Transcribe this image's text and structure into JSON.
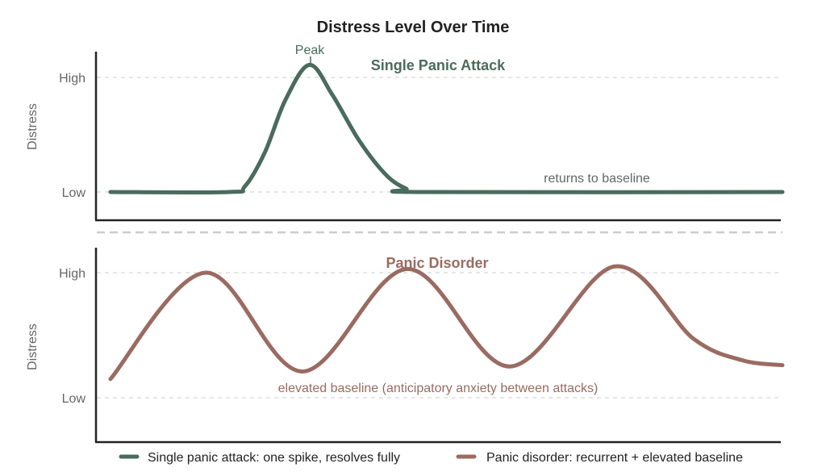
{
  "chart_data": [
    {
      "type": "line",
      "title": "Distress Level Over Time",
      "panel_title": "Single Panic Attack",
      "ylabel": "Distress",
      "xlabel": "",
      "y_ticks": [
        "Low",
        "High"
      ],
      "y_tick_values": [
        0,
        1
      ],
      "ylim": [
        -0.25,
        1.25
      ],
      "xlim": [
        0,
        100
      ],
      "grid": "horizontal dashed at ticks",
      "color": "#4a6b5d",
      "annotations": {
        "peak": "Peak",
        "baseline": "returns to baseline"
      },
      "series": [
        {
          "x": [
            0,
            17.6,
            20,
            23,
            26,
            29.6,
            33,
            37,
            41,
            44,
            46.6,
            100
          ],
          "y": [
            0,
            0,
            0.05,
            0.35,
            0.8,
            1.11,
            0.85,
            0.45,
            0.15,
            0.03,
            0,
            0
          ]
        }
      ]
    },
    {
      "type": "line",
      "panel_title": "Panic Disorder",
      "ylabel": "Distress",
      "xlabel": "",
      "y_ticks": [
        "Low",
        "High"
      ],
      "y_tick_values": [
        0,
        1
      ],
      "ylim": [
        -0.35,
        1.2
      ],
      "xlim": [
        0,
        100
      ],
      "grid": "horizontal dashed at ticks",
      "color": "#9a6b62",
      "annotations": {
        "baseline": "elevated baseline (anticipatory anxiety between attacks)"
      },
      "series": [
        {
          "x": [
            0,
            14.2,
            28.6,
            44.2,
            59.4,
            75,
            86.8,
            94,
            100
          ],
          "y": [
            0.15,
            1.0,
            0.21,
            1.03,
            0.25,
            1.05,
            0.47,
            0.3,
            0.26
          ]
        }
      ]
    }
  ],
  "legend": {
    "position": "bottom",
    "items": [
      {
        "label": "Single panic attack: one spike, resolves fully",
        "color": "#4a6b5d"
      },
      {
        "label": "Panic disorder: recurrent + elevated baseline",
        "color": "#9a6b62"
      }
    ]
  }
}
